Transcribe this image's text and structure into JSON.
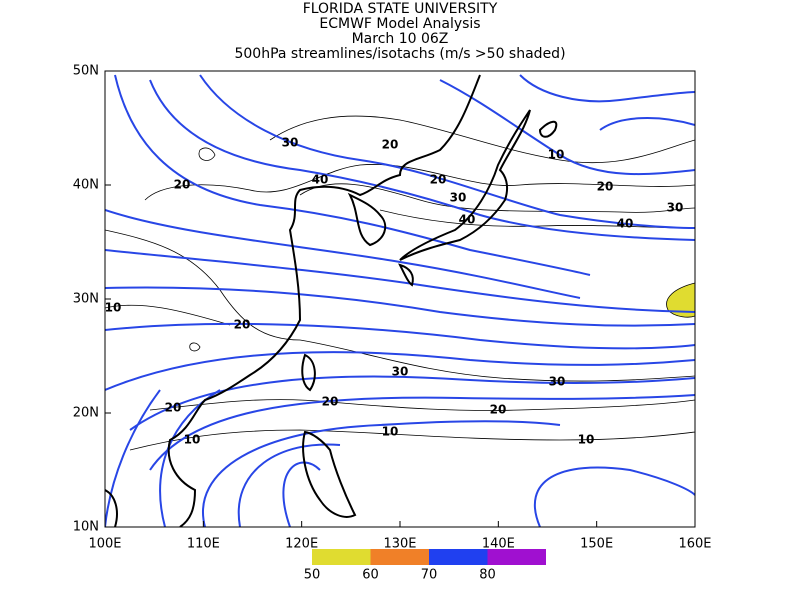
{
  "header": {
    "lines": [
      "FLORIDA STATE UNIVERSITY",
      "ECMWF Model Analysis",
      "March 10 06Z",
      "500hPa streamlines/isotachs (m/s >50 shaded)"
    ]
  },
  "map": {
    "lon_labels": [
      "100E",
      "110E",
      "120E",
      "130E",
      "140E",
      "150E",
      "160E"
    ],
    "lat_labels": [
      "50N",
      "40N",
      "30N",
      "20N",
      "10N"
    ],
    "contour_labels": [
      "30",
      "20",
      "40",
      "20",
      "20",
      "30",
      "20",
      "40",
      "30",
      "40",
      "10",
      "10",
      "20",
      "30",
      "30",
      "20",
      "20",
      "20",
      "10",
      "10",
      "10"
    ]
  },
  "colorbar": {
    "labels": [
      "50",
      "60",
      "70",
      "80"
    ],
    "colors": [
      "#e0dc30",
      "#f08028",
      "#2040f0",
      "#a010d0"
    ]
  }
}
